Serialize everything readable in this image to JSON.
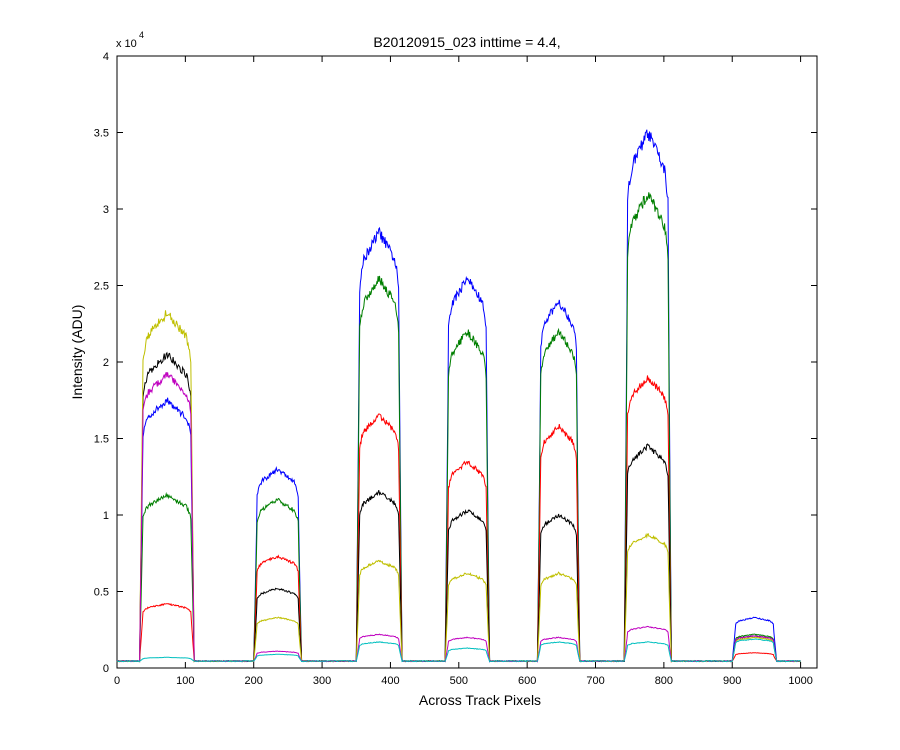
{
  "chart_data": {
    "type": "line",
    "title": "B20120915_023 inttime = 4.4,",
    "xlabel": "Across Track Pixels",
    "ylabel": "Intensity (ADU)",
    "y_exponent_label": "x 10",
    "y_exponent": "4",
    "xlim": [
      0,
      1024
    ],
    "ylim": [
      0,
      40000
    ],
    "xticks": [
      0,
      100,
      200,
      300,
      400,
      500,
      600,
      700,
      800,
      900,
      1000
    ],
    "yticks": [
      0,
      5000,
      10000,
      15000,
      20000,
      25000,
      30000,
      35000,
      40000
    ],
    "yticklabels": [
      "0",
      "0.5",
      "1",
      "1.5",
      "2",
      "2.5",
      "3",
      "3.5",
      "4"
    ],
    "grid": false,
    "legend": "none",
    "baseline": 450,
    "plateaus": [
      {
        "start": 38,
        "end": 108
      },
      {
        "start": 205,
        "end": 265
      },
      {
        "start": 355,
        "end": 412
      },
      {
        "start": 485,
        "end": 540
      },
      {
        "start": 620,
        "end": 672
      },
      {
        "start": 747,
        "end": 806
      },
      {
        "start": 905,
        "end": 960
      }
    ],
    "series": [
      {
        "color": "#0000ff",
        "peaks": [
          17500,
          13000,
          28500,
          25500,
          24000,
          35000,
          3300
        ]
      },
      {
        "color": "#007f00",
        "peaks": [
          11300,
          11000,
          25500,
          22000,
          22000,
          31000,
          2200
        ]
      },
      {
        "color": "#ff0000",
        "peaks": [
          4200,
          7300,
          16500,
          13500,
          15800,
          19000,
          1000
        ]
      },
      {
        "color": "#000000",
        "peaks": [
          20500,
          5200,
          11500,
          10300,
          10000,
          14500,
          2100
        ]
      },
      {
        "color": "#bfbf00",
        "peaks": [
          23200,
          3300,
          7000,
          6200,
          6200,
          8700,
          2000
        ]
      },
      {
        "color": "#bf00bf",
        "peaks": [
          19200,
          1100,
          2200,
          2000,
          2000,
          2700,
          2100
        ]
      },
      {
        "color": "#00bfbf",
        "peaks": [
          700,
          900,
          1700,
          1300,
          1700,
          1700,
          1900
        ]
      }
    ]
  }
}
